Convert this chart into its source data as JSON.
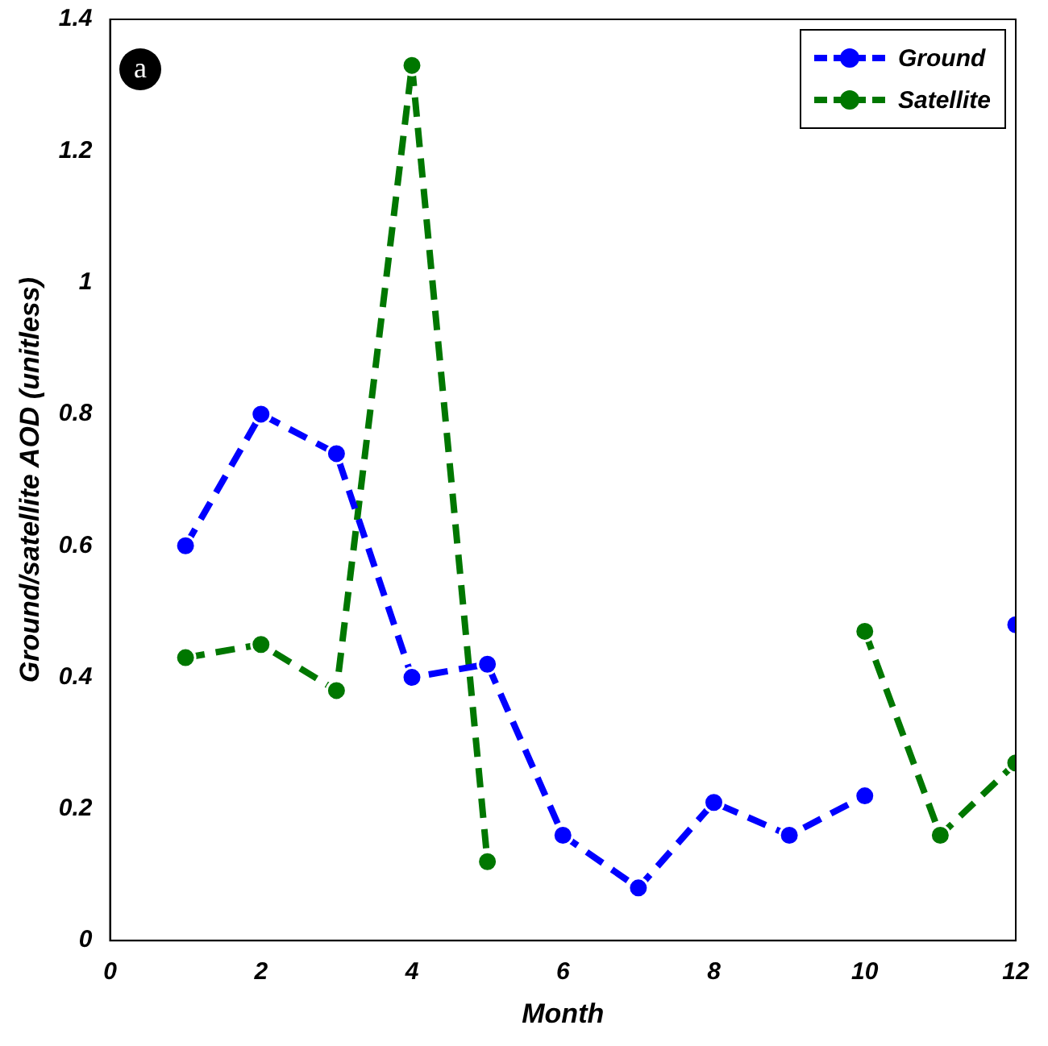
{
  "chart_data": {
    "type": "line",
    "xlabel": "Month",
    "ylabel": "Ground/satellite AOD (unitless)",
    "x": [
      1,
      2,
      3,
      4,
      5,
      6,
      7,
      8,
      9,
      10,
      11,
      12
    ],
    "series": [
      {
        "name": "Ground",
        "color": "#0000ff",
        "values": [
          0.6,
          0.8,
          0.74,
          0.4,
          0.42,
          0.16,
          0.08,
          0.21,
          0.16,
          0.22,
          null,
          0.48
        ]
      },
      {
        "name": "Satellite",
        "color": "#007700",
        "values": [
          0.43,
          0.45,
          0.38,
          1.33,
          0.12,
          null,
          null,
          null,
          null,
          0.47,
          0.16,
          0.27
        ]
      }
    ],
    "xlim": [
      0,
      12
    ],
    "xticks": [
      0,
      2,
      4,
      6,
      8,
      10,
      12
    ],
    "ylim": [
      0,
      1.4
    ],
    "yticks": [
      0,
      0.2,
      0.4,
      0.6,
      0.8,
      1,
      1.2,
      1.4
    ],
    "annotations": [
      "a"
    ],
    "grid": false,
    "legend": "top right",
    "marker": "circle",
    "line_style": "dashed"
  }
}
